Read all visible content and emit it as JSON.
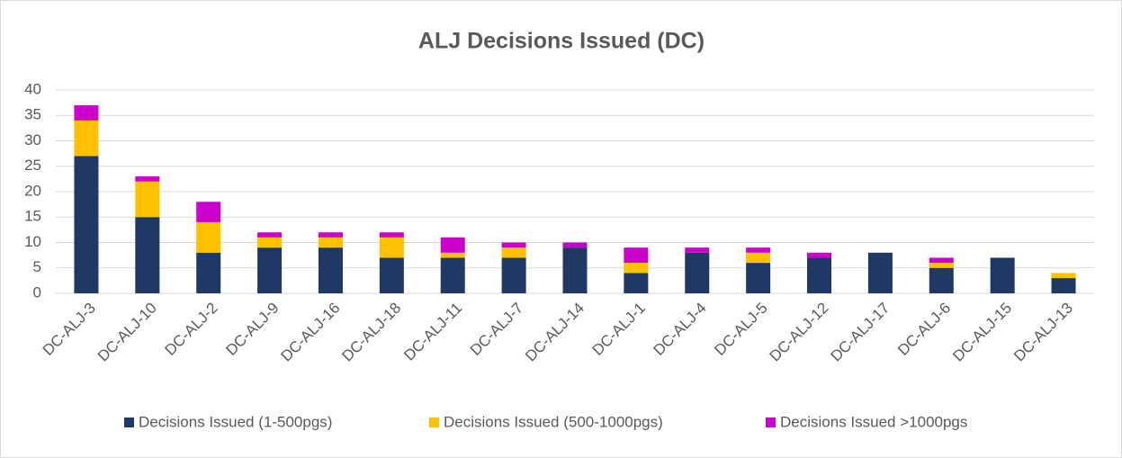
{
  "chart_data": {
    "type": "stacked_bar",
    "title": "ALJ Decisions Issued (DC)",
    "categories": [
      "DC-ALJ-3",
      "DC-ALJ-10",
      "DC-ALJ-2",
      "DC-ALJ-9",
      "DC-ALJ-16",
      "DC-ALJ-18",
      "DC-ALJ-11",
      "DC-ALJ-7",
      "DC-ALJ-14",
      "DC-ALJ-1",
      "DC-ALJ-4",
      "DC-ALJ-5",
      "DC-ALJ-12",
      "DC-ALJ-17",
      "DC-ALJ-6",
      "DC-ALJ-15",
      "DC-ALJ-13"
    ],
    "series": [
      {
        "name": "Decisions Issued (1-500pgs)",
        "color": "#1f3864",
        "values": [
          27,
          15,
          8,
          9,
          9,
          7,
          7,
          7,
          9,
          4,
          8,
          6,
          7,
          8,
          5,
          7,
          3
        ]
      },
      {
        "name": "Decisions Issued (500-1000pgs)",
        "color": "#ffc000",
        "values": [
          7,
          7,
          6,
          2,
          2,
          4,
          1,
          2,
          0,
          2,
          0,
          2,
          0,
          0,
          1,
          0,
          1
        ]
      },
      {
        "name": "Decisions Issued >1000pgs",
        "color": "#cc00cc",
        "values": [
          3,
          1,
          4,
          1,
          1,
          1,
          3,
          1,
          1,
          3,
          1,
          1,
          1,
          0,
          1,
          0,
          0
        ]
      }
    ],
    "ylim": [
      0,
      40
    ],
    "yticks": [
      0,
      5,
      10,
      15,
      20,
      25,
      30,
      35,
      40
    ],
    "grid": true,
    "legend": "bottom"
  }
}
